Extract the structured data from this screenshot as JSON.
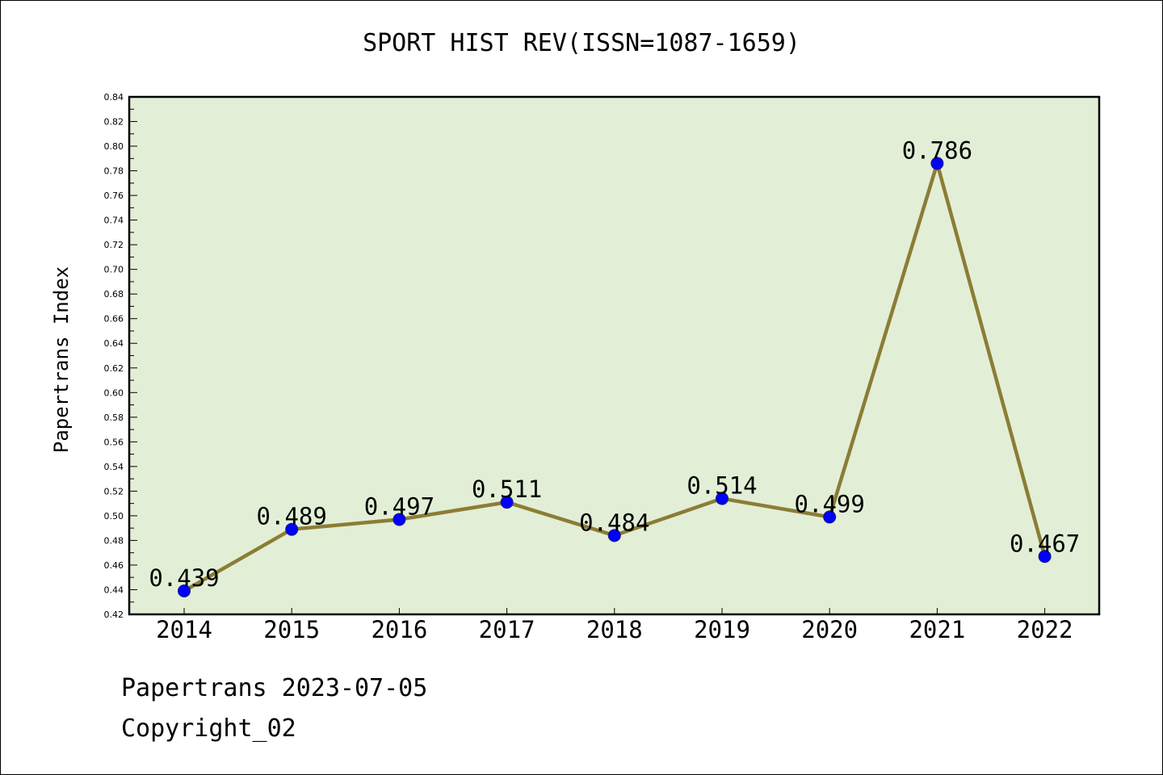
{
  "chart_data": {
    "type": "line",
    "title": "SPORT HIST REV(ISSN=1087-1659)",
    "xlabel": "",
    "ylabel": "Papertrans Index",
    "categories": [
      "2014",
      "2015",
      "2016",
      "2017",
      "2018",
      "2019",
      "2020",
      "2021",
      "2022"
    ],
    "series": [
      {
        "values": [
          0.439,
          0.489,
          0.497,
          0.511,
          0.484,
          0.514,
          0.499,
          0.786,
          0.467
        ],
        "labels": [
          "0.439",
          "0.489",
          "0.497",
          "0.511",
          "0.484",
          "0.514",
          "0.499",
          "0.786",
          "0.467"
        ]
      }
    ],
    "ylim": [
      0.42,
      0.84
    ],
    "y_ticks": [
      "0.42",
      "0.44",
      "0.46",
      "0.48",
      "0.50",
      "0.52",
      "0.54",
      "0.56",
      "0.58",
      "0.60",
      "0.62",
      "0.64",
      "0.66",
      "0.68",
      "0.70",
      "0.72",
      "0.74",
      "0.76",
      "0.78",
      "0.80",
      "0.82",
      "0.84"
    ],
    "grid": false,
    "legend": "none",
    "colors": {
      "plot_background": "#e2efd6",
      "line": "#8b7d35",
      "marker": "#0000ff"
    }
  },
  "footer": {
    "date_text": "Papertrans 2023-07-05",
    "copyright_text": "Copyright_02"
  }
}
